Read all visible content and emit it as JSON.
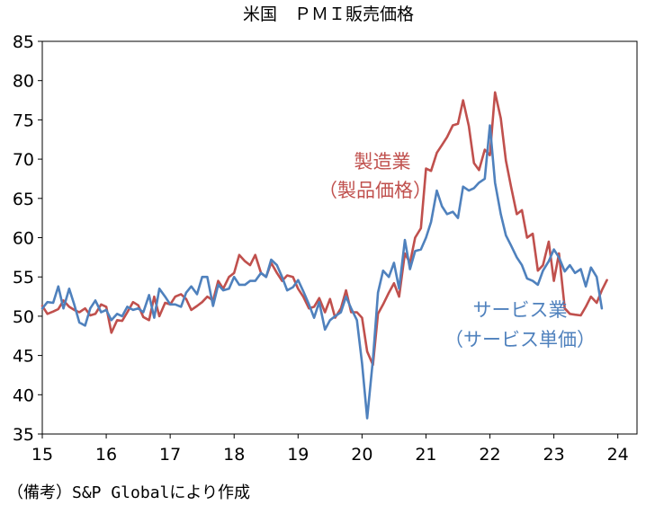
{
  "chart_data": {
    "type": "line",
    "title": "米国　ＰＭＩ販売価格",
    "xlabel": "",
    "ylabel": "",
    "ylim": [
      35,
      85
    ],
    "yticks": [
      35,
      40,
      45,
      50,
      55,
      60,
      65,
      70,
      75,
      80,
      85
    ],
    "xlim": [
      2015,
      2024.3
    ],
    "xticks": [
      {
        "label": "15",
        "x": 2015
      },
      {
        "label": "16",
        "x": 2016
      },
      {
        "label": "17",
        "x": 2017
      },
      {
        "label": "18",
        "x": 2018
      },
      {
        "label": "19",
        "x": 2019
      },
      {
        "label": "20",
        "x": 2020
      },
      {
        "label": "21",
        "x": 2021
      },
      {
        "label": "22",
        "x": 2022
      },
      {
        "label": "23",
        "x": 2023
      },
      {
        "label": "24",
        "x": 2024
      }
    ],
    "annotations": [
      {
        "series": "manufacturing",
        "lines": [
          "製造業",
          "（製品価格）"
        ]
      },
      {
        "series": "services",
        "lines": [
          "サービス業",
          "（サービス単価）"
        ]
      }
    ],
    "series": [
      {
        "name": "manufacturing",
        "color": "#c0504d",
        "points": [
          [
            2015.0,
            51.3
          ],
          [
            2015.08,
            50.3
          ],
          [
            2015.17,
            50.6
          ],
          [
            2015.25,
            50.9
          ],
          [
            2015.33,
            52.0
          ],
          [
            2015.42,
            51.2
          ],
          [
            2015.5,
            50.8
          ],
          [
            2015.58,
            50.5
          ],
          [
            2015.67,
            51.0
          ],
          [
            2015.75,
            50.1
          ],
          [
            2015.83,
            50.3
          ],
          [
            2015.92,
            51.5
          ],
          [
            2016.0,
            51.2
          ],
          [
            2016.08,
            47.9
          ],
          [
            2016.17,
            49.5
          ],
          [
            2016.25,
            49.4
          ],
          [
            2016.33,
            50.5
          ],
          [
            2016.42,
            51.8
          ],
          [
            2016.5,
            51.4
          ],
          [
            2016.58,
            49.9
          ],
          [
            2016.67,
            49.5
          ],
          [
            2016.75,
            52.5
          ],
          [
            2016.83,
            50.0
          ],
          [
            2016.92,
            51.7
          ],
          [
            2017.0,
            51.5
          ],
          [
            2017.08,
            52.5
          ],
          [
            2017.17,
            52.8
          ],
          [
            2017.25,
            52.2
          ],
          [
            2017.33,
            50.8
          ],
          [
            2017.42,
            51.3
          ],
          [
            2017.5,
            51.8
          ],
          [
            2017.58,
            52.5
          ],
          [
            2017.67,
            52.0
          ],
          [
            2017.75,
            54.5
          ],
          [
            2017.83,
            53.5
          ],
          [
            2017.92,
            55.0
          ],
          [
            2018.0,
            55.5
          ],
          [
            2018.08,
            57.8
          ],
          [
            2018.17,
            57.0
          ],
          [
            2018.25,
            56.5
          ],
          [
            2018.33,
            57.8
          ],
          [
            2018.42,
            55.5
          ],
          [
            2018.5,
            55.0
          ],
          [
            2018.58,
            56.8
          ],
          [
            2018.67,
            55.5
          ],
          [
            2018.75,
            54.5
          ],
          [
            2018.83,
            55.2
          ],
          [
            2018.92,
            55.0
          ],
          [
            2019.0,
            53.5
          ],
          [
            2019.08,
            52.5
          ],
          [
            2019.17,
            51.0
          ],
          [
            2019.25,
            51.2
          ],
          [
            2019.33,
            52.3
          ],
          [
            2019.42,
            50.5
          ],
          [
            2019.5,
            52.2
          ],
          [
            2019.58,
            49.8
          ],
          [
            2019.67,
            51.0
          ],
          [
            2019.75,
            53.3
          ],
          [
            2019.83,
            50.5
          ],
          [
            2019.92,
            50.5
          ],
          [
            2020.0,
            49.8
          ],
          [
            2020.08,
            45.5
          ],
          [
            2020.17,
            43.8
          ],
          [
            2020.25,
            50.3
          ],
          [
            2020.33,
            51.5
          ],
          [
            2020.42,
            53.0
          ],
          [
            2020.5,
            54.2
          ],
          [
            2020.58,
            52.5
          ],
          [
            2020.67,
            58.0
          ],
          [
            2020.75,
            56.8
          ],
          [
            2020.83,
            60.0
          ],
          [
            2020.92,
            61.2
          ],
          [
            2021.0,
            68.8
          ],
          [
            2021.08,
            68.5
          ],
          [
            2021.17,
            70.8
          ],
          [
            2021.25,
            71.8
          ],
          [
            2021.33,
            72.8
          ],
          [
            2021.42,
            74.3
          ],
          [
            2021.5,
            74.5
          ],
          [
            2021.58,
            77.5
          ],
          [
            2021.67,
            74.2
          ],
          [
            2021.75,
            69.5
          ],
          [
            2021.83,
            68.6
          ],
          [
            2021.92,
            71.2
          ],
          [
            2022.0,
            70.5
          ],
          [
            2022.08,
            78.5
          ],
          [
            2022.17,
            75.2
          ],
          [
            2022.25,
            69.8
          ],
          [
            2022.33,
            66.5
          ],
          [
            2022.42,
            63.0
          ],
          [
            2022.5,
            63.5
          ],
          [
            2022.58,
            60.0
          ],
          [
            2022.67,
            60.5
          ],
          [
            2022.75,
            55.8
          ],
          [
            2022.83,
            56.5
          ],
          [
            2022.92,
            59.5
          ],
          [
            2023.0,
            54.5
          ],
          [
            2023.08,
            58.0
          ],
          [
            2023.17,
            51.0
          ],
          [
            2023.25,
            50.3
          ],
          [
            2023.33,
            50.2
          ],
          [
            2023.42,
            50.1
          ],
          [
            2023.5,
            51.2
          ],
          [
            2023.58,
            52.5
          ],
          [
            2023.67,
            51.7
          ],
          [
            2023.75,
            53.3
          ],
          [
            2023.83,
            54.6
          ]
        ]
      },
      {
        "name": "services",
        "color": "#4f81bd",
        "points": [
          [
            2015.0,
            51.0
          ],
          [
            2015.08,
            51.8
          ],
          [
            2015.17,
            51.7
          ],
          [
            2015.25,
            53.8
          ],
          [
            2015.33,
            51.0
          ],
          [
            2015.42,
            53.5
          ],
          [
            2015.5,
            51.5
          ],
          [
            2015.58,
            49.2
          ],
          [
            2015.67,
            48.8
          ],
          [
            2015.75,
            51.0
          ],
          [
            2015.83,
            52.0
          ],
          [
            2015.92,
            50.5
          ],
          [
            2016.0,
            50.8
          ],
          [
            2016.08,
            49.5
          ],
          [
            2016.17,
            50.3
          ],
          [
            2016.25,
            50.0
          ],
          [
            2016.33,
            51.2
          ],
          [
            2016.42,
            50.8
          ],
          [
            2016.5,
            51.0
          ],
          [
            2016.58,
            50.5
          ],
          [
            2016.67,
            52.7
          ],
          [
            2016.75,
            49.8
          ],
          [
            2016.83,
            53.5
          ],
          [
            2016.92,
            52.5
          ],
          [
            2017.0,
            51.5
          ],
          [
            2017.08,
            51.5
          ],
          [
            2017.17,
            51.2
          ],
          [
            2017.25,
            53.0
          ],
          [
            2017.33,
            53.8
          ],
          [
            2017.42,
            52.8
          ],
          [
            2017.5,
            55.0
          ],
          [
            2017.58,
            55.0
          ],
          [
            2017.67,
            51.3
          ],
          [
            2017.75,
            54.0
          ],
          [
            2017.83,
            53.3
          ],
          [
            2017.92,
            53.5
          ],
          [
            2018.0,
            55.0
          ],
          [
            2018.08,
            54.0
          ],
          [
            2018.17,
            54.0
          ],
          [
            2018.25,
            54.5
          ],
          [
            2018.33,
            54.5
          ],
          [
            2018.42,
            55.5
          ],
          [
            2018.5,
            55.0
          ],
          [
            2018.58,
            57.2
          ],
          [
            2018.67,
            56.5
          ],
          [
            2018.75,
            55.0
          ],
          [
            2018.83,
            53.3
          ],
          [
            2018.92,
            53.7
          ],
          [
            2019.0,
            54.6
          ],
          [
            2019.08,
            53.2
          ],
          [
            2019.17,
            51.5
          ],
          [
            2019.25,
            49.8
          ],
          [
            2019.33,
            51.8
          ],
          [
            2019.42,
            48.3
          ],
          [
            2019.5,
            49.5
          ],
          [
            2019.58,
            50.0
          ],
          [
            2019.67,
            50.5
          ],
          [
            2019.75,
            52.5
          ],
          [
            2019.83,
            51.0
          ],
          [
            2019.92,
            49.5
          ],
          [
            2020.0,
            44.0
          ],
          [
            2020.08,
            37.0
          ],
          [
            2020.17,
            44.5
          ],
          [
            2020.25,
            53.0
          ],
          [
            2020.33,
            55.8
          ],
          [
            2020.42,
            55.0
          ],
          [
            2020.5,
            56.8
          ],
          [
            2020.58,
            53.5
          ],
          [
            2020.67,
            59.7
          ],
          [
            2020.75,
            56.0
          ],
          [
            2020.83,
            58.3
          ],
          [
            2020.92,
            58.5
          ],
          [
            2021.0,
            60.0
          ],
          [
            2021.08,
            62.0
          ],
          [
            2021.17,
            66.0
          ],
          [
            2021.25,
            64.0
          ],
          [
            2021.33,
            63.0
          ],
          [
            2021.42,
            63.3
          ],
          [
            2021.5,
            62.5
          ],
          [
            2021.58,
            66.5
          ],
          [
            2021.67,
            66.0
          ],
          [
            2021.75,
            66.3
          ],
          [
            2021.83,
            67.0
          ],
          [
            2021.92,
            67.5
          ],
          [
            2022.0,
            74.3
          ],
          [
            2022.08,
            67.0
          ],
          [
            2022.17,
            63.0
          ],
          [
            2022.25,
            60.3
          ],
          [
            2022.33,
            59.0
          ],
          [
            2022.42,
            57.5
          ],
          [
            2022.5,
            56.5
          ],
          [
            2022.58,
            54.8
          ],
          [
            2022.67,
            54.5
          ],
          [
            2022.75,
            54.0
          ],
          [
            2022.83,
            55.8
          ],
          [
            2022.92,
            57.0
          ],
          [
            2023.0,
            58.5
          ],
          [
            2023.08,
            57.5
          ],
          [
            2023.17,
            55.7
          ],
          [
            2023.25,
            56.5
          ],
          [
            2023.33,
            55.5
          ],
          [
            2023.42,
            56.0
          ],
          [
            2023.5,
            53.8
          ],
          [
            2023.58,
            56.2
          ],
          [
            2023.67,
            55.0
          ],
          [
            2023.75,
            51.0
          ]
        ]
      }
    ]
  },
  "source_note": "（備考）S&P Globalにより作成"
}
